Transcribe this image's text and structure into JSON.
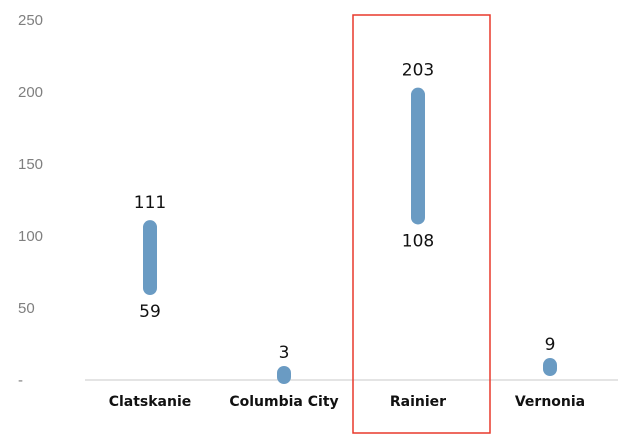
{
  "chart_data": {
    "type": "range-bar",
    "categories": [
      "Clatskanie",
      "Columbia City",
      "Rainier",
      "Vernonia"
    ],
    "low": [
      59,
      3,
      108,
      9
    ],
    "high": [
      111,
      3,
      203,
      9
    ],
    "ylim": [
      0,
      250
    ],
    "yticks": [
      0,
      50,
      100,
      150,
      200,
      250
    ],
    "ytick_labels": [
      "-",
      "50",
      "100",
      "150",
      "200",
      "250"
    ],
    "grid": false,
    "highlight_category": "Rainier",
    "colors": {
      "bar": "#6a9bc3",
      "highlight_box": "#e8392b",
      "axis": "#c8c8c8"
    }
  }
}
